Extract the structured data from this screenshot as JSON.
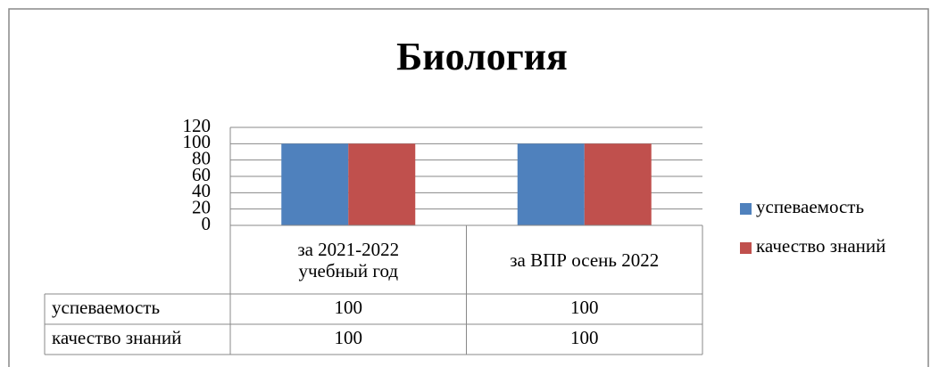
{
  "chart_data": {
    "type": "bar",
    "title": "Биология",
    "categories": [
      "за 2021-2022 учебный год",
      "за ВПР осень 2022"
    ],
    "series": [
      {
        "name": "успеваемость",
        "color": "#4f81bd",
        "values": [
          100,
          100
        ]
      },
      {
        "name": "качество знаний",
        "color": "#c0504d",
        "values": [
          100,
          100
        ]
      }
    ],
    "ylim": [
      0,
      120
    ],
    "yticks": [
      0,
      20,
      40,
      60,
      80,
      100,
      120
    ],
    "grid": true,
    "legend": "right",
    "data_table": true
  }
}
